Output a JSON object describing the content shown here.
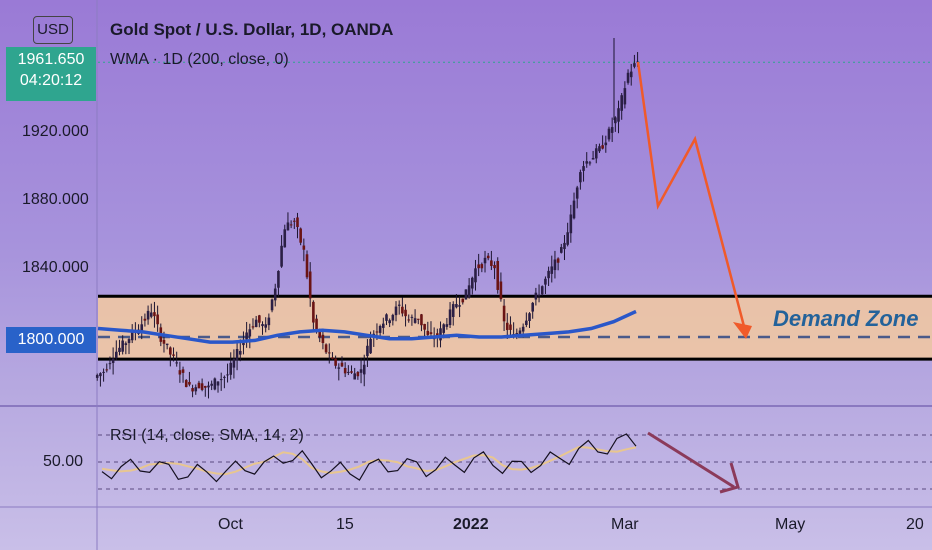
{
  "currency": "USD",
  "title": "Gold Spot / U.S. Dollar, 1D, OANDA",
  "indicator": "WMA · 1D (200, close, 0)",
  "rsi_label": "RSI (14, close, SMA, 14, 2)",
  "current_price": "1961.650",
  "countdown": "04:20:12",
  "level_price": "1800.000",
  "zone_label": "Demand Zone",
  "colors": {
    "current": "#2fa58f",
    "level": "#2962c9",
    "zone_fill": "#f3c9a0",
    "wma": "#2a57c9",
    "arrow": "#f05a2a",
    "rsi_arrow": "#8b3a5a"
  },
  "chart_data": {
    "type": "candlestick",
    "price_axis": {
      "ticks": [
        "1920.000",
        "1880.000",
        "1840.000"
      ]
    },
    "rsi_axis": {
      "ticks": [
        "50.00"
      ]
    },
    "time_axis": {
      "ticks": [
        "Oct",
        "15",
        "2022",
        "Mar",
        "May",
        "20"
      ]
    },
    "demand_zone": [
      1787,
      1824
    ],
    "level": 1800,
    "last": 1961.65,
    "wma_points": [
      1805,
      1804,
      1803,
      1801,
      1799,
      1797,
      1797,
      1798,
      1801,
      1803,
      1804,
      1803,
      1801,
      1799,
      1799,
      1800,
      1801,
      1800,
      1800,
      1801,
      1802,
      1803,
      1805,
      1809,
      1815
    ],
    "close_points": [
      1780,
      1790,
      1795,
      1802,
      1808,
      1816,
      1800,
      1790,
      1780,
      1770,
      1772,
      1770,
      1775,
      1778,
      1790,
      1803,
      1810,
      1805,
      1830,
      1865,
      1868,
      1850,
      1808,
      1795,
      1785,
      1782,
      1778,
      1780,
      1800,
      1808,
      1812,
      1818,
      1810,
      1812,
      1800,
      1800,
      1810,
      1820,
      1825,
      1840,
      1845,
      1842,
      1808,
      1800,
      1808,
      1820,
      1830,
      1840,
      1850,
      1870,
      1900,
      1905,
      1910,
      1920,
      1932,
      1955,
      1962
    ]
  }
}
